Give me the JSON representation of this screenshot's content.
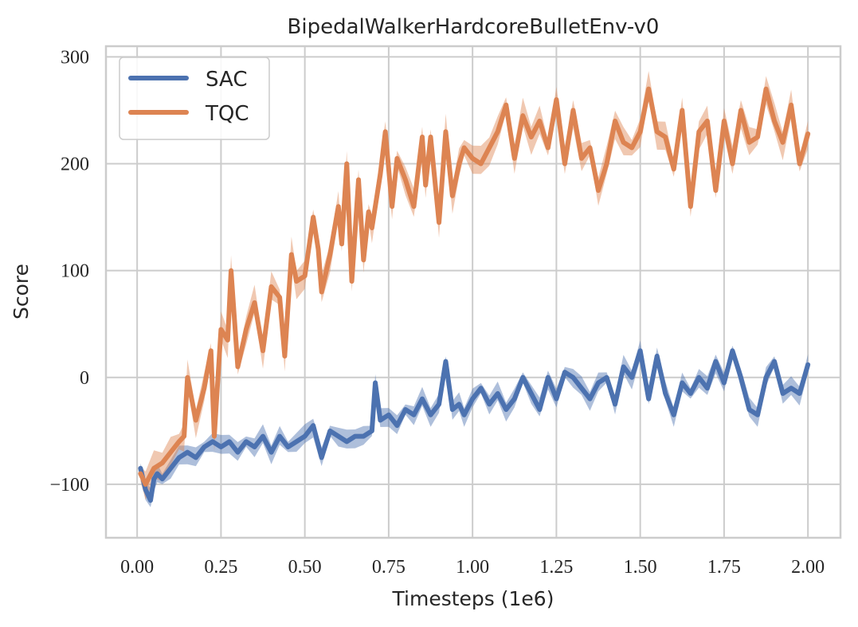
{
  "chart_data": {
    "type": "line",
    "title": "BipedalWalkerHardcoreBulletEnv-v0",
    "xlabel": "Timesteps (1e6)",
    "ylabel": "Score",
    "xlim": [
      -0.093,
      2.097
    ],
    "ylim": [
      -150,
      310
    ],
    "xticks": [
      0.0,
      0.25,
      0.5,
      0.75,
      1.0,
      1.25,
      1.5,
      1.75,
      2.0
    ],
    "xtick_labels": [
      "0.00",
      "0.25",
      "0.50",
      "0.75",
      "1.00",
      "1.25",
      "1.50",
      "1.75",
      "2.00"
    ],
    "yticks": [
      -100,
      0,
      100,
      200,
      300
    ],
    "ytick_labels": [
      "−100",
      "0",
      "100",
      "200",
      "300"
    ],
    "grid": true,
    "legend_position": "top-left",
    "series": [
      {
        "name": "SAC",
        "color": "#4c72b0",
        "spread": 8,
        "x": [
          0.01,
          0.025,
          0.04,
          0.05,
          0.06,
          0.075,
          0.1,
          0.125,
          0.15,
          0.175,
          0.2,
          0.225,
          0.25,
          0.275,
          0.3,
          0.325,
          0.35,
          0.375,
          0.4,
          0.425,
          0.45,
          0.475,
          0.5,
          0.525,
          0.55,
          0.575,
          0.6,
          0.625,
          0.65,
          0.675,
          0.7,
          0.71,
          0.725,
          0.75,
          0.775,
          0.8,
          0.825,
          0.85,
          0.875,
          0.9,
          0.92,
          0.94,
          0.96,
          0.975,
          1.0,
          1.025,
          1.05,
          1.075,
          1.1,
          1.125,
          1.15,
          1.175,
          1.2,
          1.225,
          1.25,
          1.275,
          1.3,
          1.325,
          1.35,
          1.375,
          1.4,
          1.425,
          1.45,
          1.475,
          1.5,
          1.525,
          1.55,
          1.575,
          1.6,
          1.625,
          1.65,
          1.675,
          1.7,
          1.725,
          1.75,
          1.775,
          1.8,
          1.825,
          1.85,
          1.875,
          1.9,
          1.925,
          1.95,
          1.975,
          2.0
        ],
        "y": [
          -85,
          -105,
          -115,
          -95,
          -90,
          -95,
          -85,
          -75,
          -70,
          -75,
          -65,
          -60,
          -65,
          -60,
          -70,
          -60,
          -65,
          -55,
          -70,
          -55,
          -65,
          -60,
          -55,
          -45,
          -75,
          -50,
          -55,
          -60,
          -55,
          -55,
          -50,
          -5,
          -40,
          -35,
          -45,
          -30,
          -35,
          -20,
          -35,
          -25,
          15,
          -30,
          -25,
          -35,
          -20,
          -10,
          -25,
          -15,
          -30,
          -20,
          0,
          -15,
          -30,
          0,
          -20,
          5,
          0,
          -10,
          -20,
          -5,
          0,
          -25,
          10,
          0,
          25,
          -20,
          20,
          -15,
          -35,
          -5,
          -15,
          0,
          -10,
          15,
          -5,
          25,
          0,
          -30,
          -35,
          0,
          15,
          -15,
          -10,
          -15,
          12
        ]
      },
      {
        "name": "TQC",
        "color": "#dd8452",
        "spread": 12,
        "x": [
          0.01,
          0.025,
          0.05,
          0.075,
          0.1,
          0.125,
          0.14,
          0.15,
          0.175,
          0.2,
          0.22,
          0.23,
          0.25,
          0.27,
          0.28,
          0.3,
          0.325,
          0.35,
          0.375,
          0.4,
          0.425,
          0.44,
          0.46,
          0.475,
          0.5,
          0.525,
          0.54,
          0.55,
          0.575,
          0.6,
          0.61,
          0.625,
          0.64,
          0.66,
          0.675,
          0.69,
          0.7,
          0.725,
          0.74,
          0.76,
          0.775,
          0.8,
          0.825,
          0.85,
          0.86,
          0.875,
          0.9,
          0.92,
          0.94,
          0.96,
          0.975,
          1.0,
          1.025,
          1.05,
          1.075,
          1.1,
          1.125,
          1.15,
          1.175,
          1.2,
          1.225,
          1.25,
          1.275,
          1.3,
          1.325,
          1.35,
          1.375,
          1.4,
          1.425,
          1.45,
          1.475,
          1.5,
          1.525,
          1.55,
          1.575,
          1.6,
          1.625,
          1.65,
          1.675,
          1.7,
          1.725,
          1.75,
          1.775,
          1.8,
          1.825,
          1.85,
          1.875,
          1.9,
          1.925,
          1.95,
          1.975,
          2.0
        ],
        "y": [
          -90,
          -100,
          -85,
          -80,
          -70,
          -60,
          -55,
          0,
          -40,
          -10,
          25,
          -55,
          45,
          35,
          100,
          10,
          45,
          70,
          25,
          85,
          75,
          20,
          115,
          90,
          95,
          150,
          120,
          80,
          115,
          160,
          125,
          200,
          90,
          185,
          110,
          155,
          140,
          190,
          230,
          160,
          205,
          185,
          160,
          225,
          180,
          225,
          145,
          230,
          170,
          200,
          215,
          205,
          200,
          215,
          230,
          255,
          205,
          245,
          225,
          240,
          215,
          260,
          200,
          250,
          205,
          215,
          175,
          200,
          240,
          220,
          215,
          230,
          270,
          230,
          225,
          195,
          250,
          160,
          230,
          240,
          175,
          240,
          200,
          250,
          220,
          225,
          270,
          240,
          220,
          255,
          200,
          228
        ]
      }
    ]
  }
}
